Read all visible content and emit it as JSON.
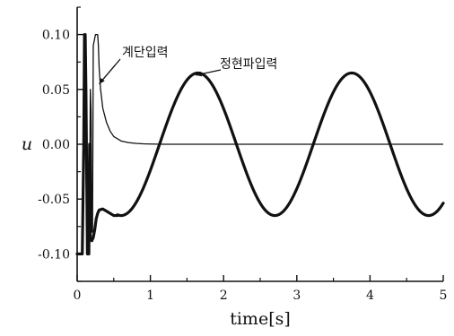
{
  "chart_data": {
    "type": "line",
    "title": "",
    "xlabel": "time[s]",
    "ylabel": "u",
    "xlim": [
      0,
      5
    ],
    "ylim": [
      -0.125,
      0.125
    ],
    "x_ticks": [
      {
        "value": 0,
        "label": "0"
      },
      {
        "value": 1,
        "label": "1"
      },
      {
        "value": 2,
        "label": "2"
      },
      {
        "value": 3,
        "label": "3"
      },
      {
        "value": 4,
        "label": "4"
      },
      {
        "value": 5,
        "label": "5"
      }
    ],
    "y_ticks": [
      {
        "value": 0.1,
        "label": "0.10"
      },
      {
        "value": 0.05,
        "label": "0.05"
      },
      {
        "value": 0.0,
        "label": "0.00"
      },
      {
        "value": -0.05,
        "label": "-0.05"
      },
      {
        "value": -0.1,
        "label": "-0.10"
      }
    ],
    "grid": false,
    "series": [
      {
        "name": "계단입력",
        "color": "#111111",
        "style": "thin",
        "x": [
          0.0,
          0.04,
          0.07,
          0.09,
          0.1,
          0.11,
          0.12,
          0.14,
          0.16,
          0.17,
          0.18,
          0.19,
          0.2,
          0.21,
          0.22,
          0.25,
          0.28,
          0.29,
          0.3,
          0.32,
          0.35,
          0.4,
          0.45,
          0.5,
          0.6,
          0.7,
          0.8,
          0.9,
          1.0,
          1.2,
          1.5,
          2.0,
          3.0,
          4.0,
          5.0
        ],
        "y": [
          -0.1,
          -0.1,
          -0.1,
          0.0,
          0.1,
          0.1,
          0.055,
          -0.1,
          -0.1,
          -0.04,
          0.05,
          0.03,
          -0.08,
          -0.08,
          0.09,
          0.1,
          0.1,
          0.09,
          0.07,
          0.05,
          0.033,
          0.02,
          0.012,
          0.007,
          0.003,
          0.0015,
          0.0008,
          0.0004,
          0.0002,
          0.0,
          0.0,
          0.0,
          0.0,
          0.0,
          0.0
        ]
      }
    ],
    "sine_series": {
      "name": "정현파입력",
      "color": "#111111",
      "style": "thick",
      "amplitude": 0.065,
      "period": 2.1,
      "peak_time": 1.65,
      "transient_x": [
        0.0,
        0.04,
        0.07,
        0.09,
        0.1,
        0.11,
        0.12,
        0.14,
        0.16,
        0.17,
        0.18,
        0.2,
        0.22,
        0.24,
        0.26,
        0.28,
        0.3,
        0.35,
        0.4,
        0.45,
        0.5,
        0.55
      ],
      "transient_y": [
        -0.1,
        -0.1,
        -0.1,
        0.0,
        0.1,
        0.1,
        0.05,
        -0.1,
        -0.1,
        0.0,
        -0.085,
        -0.088,
        -0.085,
        -0.078,
        -0.068,
        -0.063,
        -0.06,
        -0.059,
        -0.061,
        -0.063,
        -0.065,
        -0.065
      ],
      "steady_start": 0.55
    },
    "annotations": [
      {
        "text": "계단입력",
        "series": "계단입력",
        "points_to": {
          "x": 0.3,
          "y": 0.055
        }
      },
      {
        "text": "정현파입력",
        "series": "정현파입력",
        "points_to": {
          "x": 1.62,
          "y": 0.063
        }
      }
    ]
  }
}
